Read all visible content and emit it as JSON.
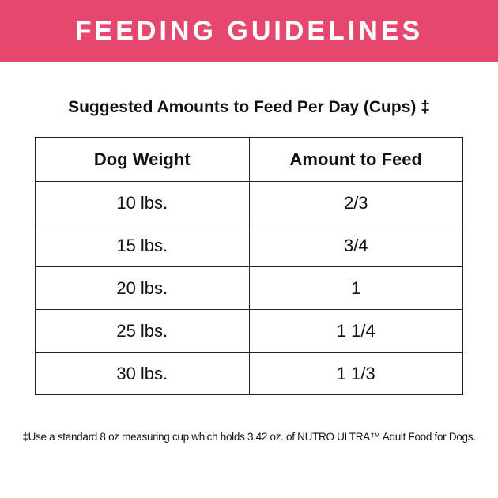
{
  "header": {
    "title": "FEEDING GUIDELINES"
  },
  "subtitle": "Suggested Amounts to Feed Per Day (Cups) ‡",
  "table": {
    "columns": [
      "Dog Weight",
      "Amount to Feed"
    ],
    "rows": [
      [
        "10 lbs.",
        "2/3"
      ],
      [
        "15 lbs.",
        "3/4"
      ],
      [
        "20 lbs.",
        "1"
      ],
      [
        "25 lbs.",
        "1 1/4"
      ],
      [
        "30 lbs.",
        "1 1/3"
      ]
    ]
  },
  "footnote": "‡Use a standard 8 oz measuring cup which holds 3.42 oz. of NUTRO ULTRA™ Adult Food for Dogs."
}
